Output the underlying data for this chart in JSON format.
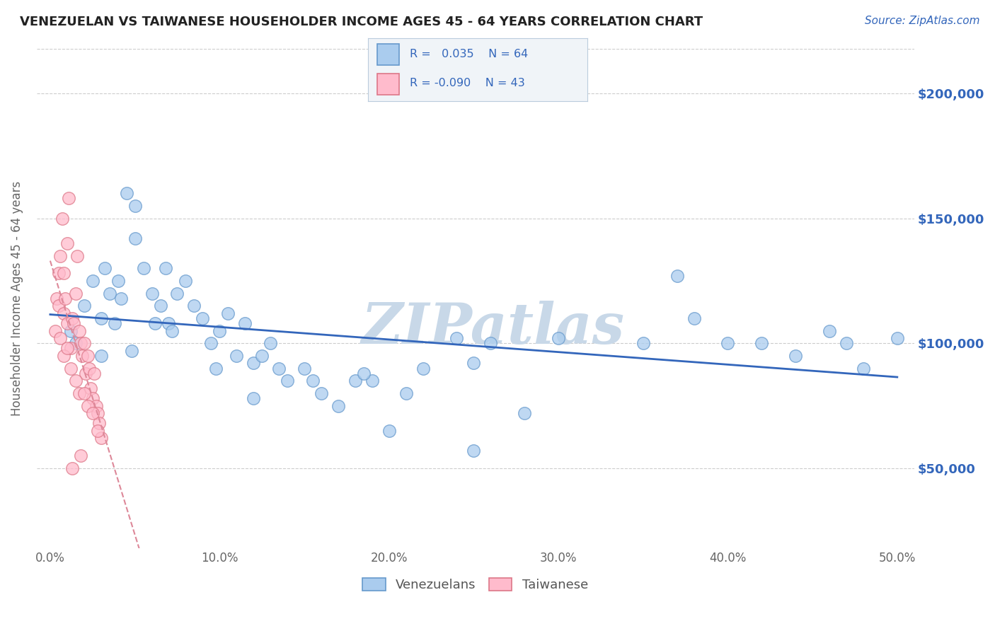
{
  "title": "VENEZUELAN VS TAIWANESE HOUSEHOLDER INCOME AGES 45 - 64 YEARS CORRELATION CHART",
  "source_text": "Source: ZipAtlas.com",
  "ylabel": "Householder Income Ages 45 - 64 years",
  "xlabel_ticks": [
    "0.0%",
    "10.0%",
    "20.0%",
    "30.0%",
    "40.0%",
    "50.0%"
  ],
  "xlabel_vals": [
    0.0,
    10.0,
    20.0,
    30.0,
    40.0,
    50.0
  ],
  "ytick_labels": [
    "$50,000",
    "$100,000",
    "$150,000",
    "$200,000"
  ],
  "ytick_vals": [
    50000,
    100000,
    150000,
    200000
  ],
  "xlim": [
    -0.8,
    51
  ],
  "ylim": [
    18000,
    218000
  ],
  "background_color": "#ffffff",
  "watermark_text": "ZIPatlas",
  "watermark_color": "#c8d8e8",
  "legend_r_blue": " 0.035",
  "legend_n_blue": "64",
  "legend_r_pink": "-0.090",
  "legend_n_pink": "43",
  "blue_scatter_x": [
    1.2,
    1.5,
    2.0,
    2.5,
    3.0,
    3.2,
    3.5,
    3.8,
    4.0,
    4.2,
    4.5,
    5.0,
    5.0,
    5.5,
    6.0,
    6.2,
    6.5,
    6.8,
    7.0,
    7.5,
    8.0,
    8.5,
    9.0,
    9.5,
    10.0,
    10.5,
    11.0,
    11.5,
    12.0,
    12.5,
    13.0,
    13.5,
    14.0,
    15.0,
    16.0,
    17.0,
    18.0,
    19.0,
    20.0,
    21.0,
    22.0,
    24.0,
    25.0,
    26.0,
    28.0,
    30.0,
    35.0,
    37.0,
    38.0,
    40.0,
    42.0,
    44.0,
    46.0,
    47.0,
    48.0,
    50.0,
    3.0,
    4.8,
    7.2,
    9.8,
    12.0,
    15.5,
    18.5,
    25.0
  ],
  "blue_scatter_y": [
    105000,
    100000,
    115000,
    125000,
    110000,
    130000,
    120000,
    108000,
    125000,
    118000,
    160000,
    155000,
    142000,
    130000,
    120000,
    108000,
    115000,
    130000,
    108000,
    120000,
    125000,
    115000,
    110000,
    100000,
    105000,
    112000,
    95000,
    108000,
    92000,
    95000,
    100000,
    90000,
    85000,
    90000,
    80000,
    75000,
    85000,
    85000,
    65000,
    80000,
    90000,
    102000,
    92000,
    100000,
    72000,
    102000,
    100000,
    127000,
    110000,
    100000,
    100000,
    95000,
    105000,
    100000,
    90000,
    102000,
    95000,
    97000,
    105000,
    90000,
    78000,
    85000,
    88000,
    57000
  ],
  "pink_scatter_x": [
    0.3,
    0.4,
    0.5,
    0.5,
    0.6,
    0.7,
    0.8,
    0.8,
    0.9,
    1.0,
    1.0,
    1.1,
    1.2,
    1.3,
    1.4,
    1.5,
    1.6,
    1.7,
    1.8,
    1.9,
    2.0,
    2.1,
    2.2,
    2.3,
    2.4,
    2.5,
    2.6,
    2.7,
    2.8,
    2.9,
    3.0,
    0.6,
    0.8,
    1.0,
    1.2,
    1.5,
    1.7,
    2.0,
    2.2,
    2.5,
    2.8,
    1.3,
    1.8
  ],
  "pink_scatter_y": [
    105000,
    118000,
    128000,
    115000,
    135000,
    150000,
    128000,
    112000,
    118000,
    108000,
    140000,
    158000,
    98000,
    110000,
    108000,
    120000,
    135000,
    105000,
    100000,
    95000,
    100000,
    88000,
    95000,
    90000,
    82000,
    78000,
    88000,
    75000,
    72000,
    68000,
    62000,
    102000,
    95000,
    98000,
    90000,
    85000,
    80000,
    80000,
    75000,
    72000,
    65000,
    50000,
    55000
  ],
  "blue_line_color": "#3366bb",
  "pink_line_color": "#dd8899",
  "scatter_blue_color": "#aaccee",
  "scatter_blue_edge": "#6699cc",
  "scatter_pink_color": "#ffbbcc",
  "scatter_pink_edge": "#dd7788",
  "grid_color": "#cccccc",
  "ytick_right_color": "#3366bb",
  "legend_box_color": "#e8eef5",
  "legend_border_color": "#aabbcc"
}
